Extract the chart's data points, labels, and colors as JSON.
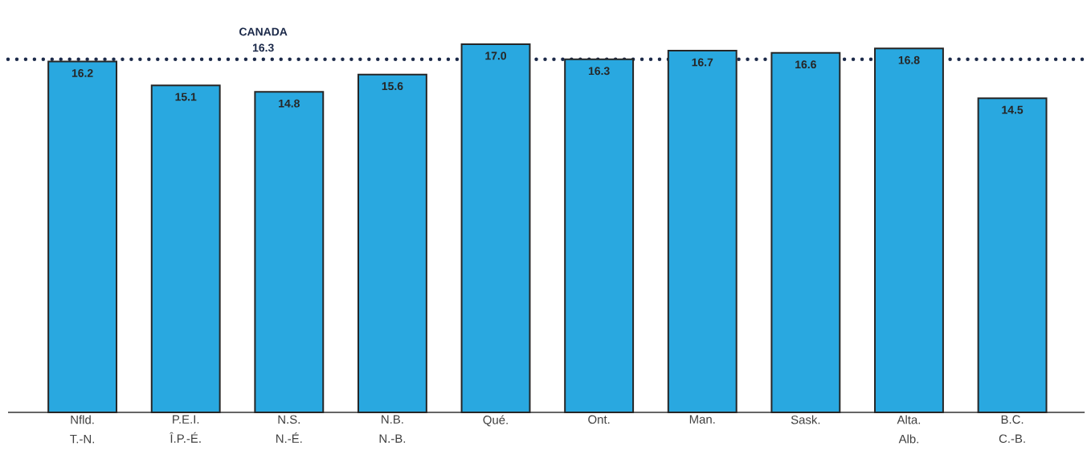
{
  "chart_data": {
    "type": "bar",
    "categories": [
      "Nfld. T.-N.",
      "P.E.I. Î.P.-É.",
      "N.S. N.-É.",
      "N.B. N.-B.",
      "Qué.",
      "Ont.",
      "Man.",
      "Sask.",
      "Alta. Alb.",
      "B.C. C.-B."
    ],
    "values": [
      16.2,
      15.1,
      14.8,
      15.6,
      17.0,
      16.3,
      16.7,
      16.6,
      16.8,
      14.5
    ],
    "color": "#29a8e0",
    "value_labels": [
      "16.2",
      "15.1",
      "14.8",
      "15.6",
      "17.0",
      "16.3",
      "16.7",
      "16.6",
      "16.8",
      "14.5"
    ],
    "ref_lines": [
      {
        "axis": "y",
        "value": 16.3,
        "label": "CANADA 16.3",
        "color": "#1c2a4a",
        "line_style": "dotted"
      }
    ]
  }
}
